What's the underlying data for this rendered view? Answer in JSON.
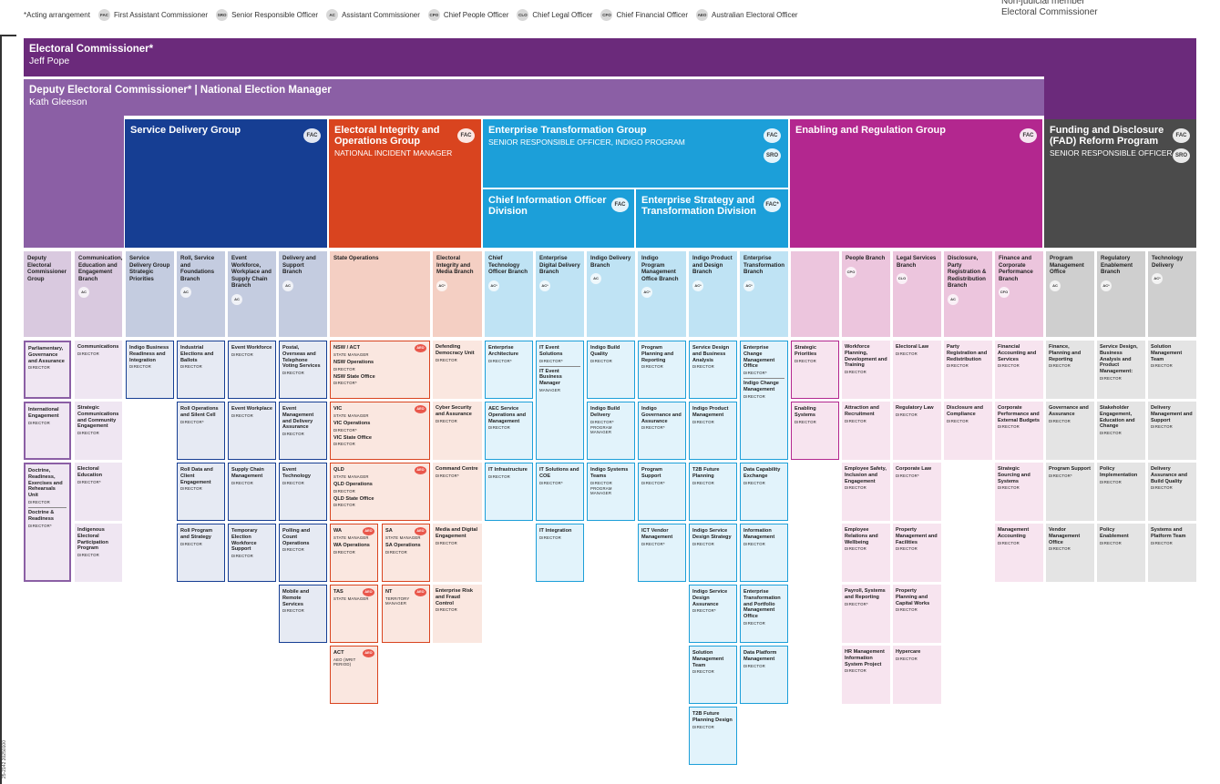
{
  "legend": {
    "note": "*Acting arrangement",
    "items": [
      {
        "code": "FAC",
        "label": "First Assistant Commissioner"
      },
      {
        "code": "SRO",
        "label": "Senior Responsible Officer"
      },
      {
        "code": "AC",
        "label": "Assistant Commissioner"
      },
      {
        "code": "CPO",
        "label": "Chief People Officer"
      },
      {
        "code": "CLO",
        "label": "Chief Legal Officer"
      },
      {
        "code": "CFO",
        "label": "Chief Financial Officer"
      },
      {
        "code": "AEO",
        "label": "Australian Electoral Officer"
      }
    ]
  },
  "non_judicial": {
    "line1": "Non-judicial member",
    "line2": "Electoral Commissioner"
  },
  "commissioner": {
    "title": "Electoral Commissioner*",
    "name": "Jeff Pope"
  },
  "deputy": {
    "title": "Deputy Electoral Commissioner* | National Election Manager",
    "name": "Kath Gleeson"
  },
  "groups": {
    "service": {
      "title": "Service Delivery Group",
      "badge": "FAC"
    },
    "integrity": {
      "title": "Electoral Integrity and Operations Group",
      "sub": "National Incident Manager",
      "badge": "FAC"
    },
    "transformation": {
      "title": "Enterprise Transformation Group",
      "sub": "Senior Responsible Officer, Indigo Program",
      "badge1": "FAC",
      "badge2": "SRO"
    },
    "cio": {
      "title": "Chief Information Officer Division",
      "badge": "FAC"
    },
    "strategy": {
      "title": "Enterprise Strategy and Transformation Division",
      "badge": "FAC*"
    },
    "enabling": {
      "title": "Enabling and Regulation Group",
      "badge": "FAC"
    },
    "funding": {
      "title": "Funding and Disclosure (FAD) Reform Program",
      "sub": "Senior Responsible Officer",
      "badge1": "FAC",
      "badge2": "SRO"
    }
  },
  "branches": [
    {
      "name": "Deputy Electoral Commissioner Group",
      "badge": ""
    },
    {
      "name": "Communication, Education and Engagement Branch",
      "badge": "AC"
    },
    {
      "name": "Service Delivery Group Strategic Priorities",
      "badge": ""
    },
    {
      "name": "Roll, Service and Foundations Branch",
      "badge": "AC"
    },
    {
      "name": "Event Workforce, Workplace and Supply Chain Branch",
      "badge": "AC"
    },
    {
      "name": "Delivery and Support Branch",
      "badge": "AC"
    },
    {
      "name": "State Operations",
      "badge": ""
    },
    {
      "name": "Electoral Integrity and Media Branch",
      "badge": "AC*"
    },
    {
      "name": "Chief Technology Officer Branch",
      "badge": "AC*"
    },
    {
      "name": "Enterprise Digital Delivery Branch",
      "badge": "AC*"
    },
    {
      "name": "Indigo Delivery Branch",
      "badge": "AC"
    },
    {
      "name": "Indigo Program Management Office Branch",
      "badge": "AC*"
    },
    {
      "name": "Indigo Product and Design Branch",
      "badge": "AC*"
    },
    {
      "name": "Enterprise Transformation Branch",
      "badge": "AC*"
    },
    {
      "name": "",
      "badge": ""
    },
    {
      "name": "People Branch",
      "badge": "CPO"
    },
    {
      "name": "Legal Services Branch",
      "badge": "CLO"
    },
    {
      "name": "Disclosure, Party Registration & Redistribution Branch",
      "badge": "AC"
    },
    {
      "name": "Finance and Corporate Performance Branch",
      "badge": "CFO"
    },
    {
      "name": "Program Management Office",
      "badge": "AC"
    },
    {
      "name": "Regulatory Enablement Branch",
      "badge": "AC*"
    },
    {
      "name": "Technology Delivery",
      "badge": "AC*"
    }
  ],
  "cells": {
    "c0_0": {
      "n": "Parliamentary, Governance and Assurance",
      "r": "DIRECTOR"
    },
    "c0_1": {
      "n": "International Engagement",
      "r": "DIRECTOR"
    },
    "c0_2": {
      "n": "Doctrine, Readiness, Exercises and Rehearsals Unit",
      "r": "DIRECTOR",
      "n2": "Doctrine & Readiness",
      "r2": "DIRECTOR*"
    },
    "c1_0": {
      "n": "Communications",
      "r": "DIRECTOR"
    },
    "c1_1": {
      "n": "Strategic Communications and Community Engagement",
      "r": "DIRECTOR"
    },
    "c1_2": {
      "n": "Electoral Education",
      "r": "DIRECTOR*"
    },
    "c1_3": {
      "n": "Indigenous Electoral Participation Program",
      "r": "DIRECTOR"
    },
    "c2_0": {
      "n": "Indigo Business Readiness and Integration",
      "r": "DIRECTOR"
    },
    "c3_0": {
      "n": "Industrial Elections and Ballots",
      "r": "DIRECTOR"
    },
    "c3_1": {
      "n": "Roll Operations and Silent Cell",
      "r": "DIRECTOR*"
    },
    "c3_2": {
      "n": "Roll Data and Client Engagement",
      "r": "DIRECTOR"
    },
    "c3_3": {
      "n": "Roll Program and Strategy",
      "r": "DIRECTOR"
    },
    "c4_0": {
      "n": "Event Workforce",
      "r": "DIRECTOR"
    },
    "c4_1": {
      "n": "Event Workplace",
      "r": "DIRECTOR"
    },
    "c4_2": {
      "n": "Supply Chain Management",
      "r": "DIRECTOR"
    },
    "c4_3": {
      "n": "Temporary Election Workforce Support",
      "r": "DIRECTOR"
    },
    "c5_0": {
      "n": "Postal, Overseas and Telephone Voting Services",
      "r": "DIRECTOR"
    },
    "c5_1": {
      "n": "Event Management and Delivery Assurance",
      "r": "DIRECTOR"
    },
    "c5_2": {
      "n": "Event Technology",
      "r": "DIRECTOR"
    },
    "c5_3": {
      "n": "Polling and Count Operations",
      "r": "DIRECTOR"
    },
    "c5_4": {
      "n": "Mobile and Remote Services",
      "r": "DIRECTOR"
    },
    "s_nsw": {
      "n": "NSW / ACT",
      "r": "STATE MANAGER",
      "a": "NSW Operations",
      "ar": "DIRECTOR",
      "b": "NSW State Office",
      "br": "DIRECTOR*",
      "badge": "AEO"
    },
    "s_vic": {
      "n": "VIC",
      "r": "STATE MANAGER",
      "a": "VIC Operations",
      "ar": "DIRECTOR*",
      "b": "VIC State Office",
      "br": "DIRECTOR",
      "badge": "AEO"
    },
    "s_qld": {
      "n": "QLD",
      "r": "STATE MANAGER",
      "a": "QLD Operations",
      "ar": "DIRECTOR",
      "b": "QLD State Office",
      "br": "DIRECTOR",
      "badge": "AEO"
    },
    "s_wa": {
      "n": "WA",
      "r": "STATE MANAGER",
      "a": "WA Operations",
      "ar": "DIRECTOR",
      "badge": "AEO"
    },
    "s_sa": {
      "n": "SA",
      "r": "STATE MANAGER",
      "a": "SA Operations",
      "ar": "DIRECTOR",
      "badge": "AEO"
    },
    "s_tas": {
      "n": "TAS",
      "r": "STATE MANAGER",
      "badge": "AEO"
    },
    "s_nt": {
      "n": "NT",
      "r": "TERRITORY MANAGER",
      "badge": "AEO"
    },
    "s_act": {
      "n": "ACT",
      "r": "AEO (WRIT PERIOD)",
      "badge": "AEO"
    },
    "c7_0": {
      "n": "Defending Democracy Unit",
      "r": "DIRECTOR"
    },
    "c7_1": {
      "n": "Cyber Security and Assurance",
      "r": "DIRECTOR"
    },
    "c7_2": {
      "n": "Command Centre",
      "r": "DIRECTOR*"
    },
    "c7_3": {
      "n": "Media and Digital Engagement",
      "r": "DIRECTOR"
    },
    "c7_4": {
      "n": "Enterprise Risk and Fraud Control",
      "r": "DIRECTOR"
    },
    "c8_0": {
      "n": "Enterprise Architecture",
      "r": "DIRECTOR*"
    },
    "c8_1": {
      "n": "AEC Service Operations and Management",
      "r": "DIRECTOR"
    },
    "c8_2": {
      "n": "IT Infrastructure",
      "r": "DIRECTOR"
    },
    "c9_0": {
      "n": "IT Event Solutions",
      "r": "DIRECTOR*",
      "n2": "IT Event Business Manager",
      "r2": "MANAGER"
    },
    "c9_2": {
      "n": "IT Solutions and COE",
      "r": "DIRECTOR*"
    },
    "c9_3": {
      "n": "IT Integration",
      "r": "DIRECTOR"
    },
    "c10_0": {
      "n": "Indigo Build Quality",
      "r": "DIRECTOR"
    },
    "c10_1": {
      "n": "Indigo Build Delivery",
      "r": "DIRECTOR*",
      "r2": "PROGRAM MANAGER"
    },
    "c10_2": {
      "n": "Indigo Systems Teams",
      "r": "DIRECTOR",
      "r2": "PROGRAM MANAGER"
    },
    "c11_0": {
      "n": "Program Planning and Reporting",
      "r": "DIRECTOR"
    },
    "c11_1": {
      "n": "Indigo Governance and Assurance",
      "r": "DIRECTOR*"
    },
    "c11_2": {
      "n": "Program Support",
      "r": "DIRECTOR*"
    },
    "c11_3": {
      "n": "ICT Vendor Management",
      "r": "DIRECTOR*"
    },
    "c12_0": {
      "n": "Service Design and Business Analysis",
      "r": "DIRECTOR"
    },
    "c12_1": {
      "n": "Indigo Product Management",
      "r": "DIRECTOR"
    },
    "c12_2": {
      "n": "T2B Future Planning",
      "r": "DIRECTOR"
    },
    "c12_3": {
      "n": "Indigo Service Design Strategy",
      "r": "DIRECTOR"
    },
    "c12_4": {
      "n": "Indigo Service Design Assurance",
      "r": "DIRECTOR*"
    },
    "c12_5": {
      "n": "Solution Management Team",
      "r": "DIRECTOR"
    },
    "c12_6": {
      "n": "T2B Future Planning Design",
      "r": "DIRECTOR"
    },
    "c13_0": {
      "n": "Enterprise Change Management Office",
      "r": "DIRECTOR*",
      "n2": "Indigo Change Management",
      "r2": "DIRECTOR"
    },
    "c13_2": {
      "n": "Data Capability Exchange",
      "r": "DIRECTOR"
    },
    "c13_3": {
      "n": "Information Management",
      "r": "DIRECTOR"
    },
    "c13_4": {
      "n": "Enterprise Transformation and Portfolio Management Office",
      "r": "DIRECTOR"
    },
    "c13_5": {
      "n": "Data Platform Management",
      "r": "DIRECTOR"
    },
    "c14_0": {
      "n": "Strategic Priorities",
      "r": "DIRECTOR"
    },
    "c14_1": {
      "n": "Enabling Systems",
      "r": "DIRECTOR"
    },
    "c15_0": {
      "n": "Workforce Planning, Development and Training",
      "r": "DIRECTOR"
    },
    "c15_1": {
      "n": "Attraction and Recruitment",
      "r": "DIRECTOR"
    },
    "c15_2": {
      "n": "Employee Safety, Inclusion and Engagement",
      "r": "DIRECTOR"
    },
    "c15_3": {
      "n": "Employee Relations and Wellbeing",
      "r": "DIRECTOR"
    },
    "c15_4": {
      "n": "Payroll, Systems and Reporting",
      "r": "DIRECTOR*"
    },
    "c15_5": {
      "n": "HR Management Information System Project",
      "r": "DIRECTOR"
    },
    "c16_0": {
      "n": "Electoral Law",
      "r": "DIRECTOR"
    },
    "c16_1": {
      "n": "Regulatory Law",
      "r": "DIRECTOR"
    },
    "c16_2": {
      "n": "Corporate Law",
      "r": "DIRECTOR*"
    },
    "c16_3": {
      "n": "Property Management and Facilities",
      "r": "DIRECTOR"
    },
    "c16_4": {
      "n": "Property Planning and Capital Works",
      "r": "DIRECTOR"
    },
    "c16_5": {
      "n": "Hypercare",
      "r": "DIRECTOR"
    },
    "c17_0": {
      "n": "Party Registration and Redistribution",
      "r": "DIRECTOR"
    },
    "c17_1": {
      "n": "Disclosure and Compliance",
      "r": "DIRECTOR"
    },
    "c18_0": {
      "n": "Financial Accounting and Services",
      "r": "DIRECTOR"
    },
    "c18_1": {
      "n": "Corporate Performance and External Budgets",
      "r": "DIRECTOR"
    },
    "c18_2": {
      "n": "Strategic Sourcing and Systems",
      "r": "DIRECTOR"
    },
    "c18_3": {
      "n": "Management Accounting",
      "r": "DIRECTOR"
    },
    "c19_0": {
      "n": "Finance, Planning and Reporting",
      "r": "DIRECTOR"
    },
    "c19_1": {
      "n": "Governance and Assurance",
      "r": "DIRECTOR"
    },
    "c19_2": {
      "n": "Program Support",
      "r": "DIRECTOR*"
    },
    "c19_3": {
      "n": "Vendor Management Office",
      "r": "DIRECTOR"
    },
    "c20_0": {
      "n": "Service Design, Business Analysis and Product Management:",
      "r": "DIRECTOR"
    },
    "c20_1": {
      "n": "Stakeholder Engagement, Education and Change",
      "r": "DIRECTOR"
    },
    "c20_2": {
      "n": "Policy Implementation",
      "r": "DIRECTOR"
    },
    "c20_3": {
      "n": "Policy Enablement",
      "r": "DIRECTOR"
    },
    "c21_0": {
      "n": "Solution Management Team",
      "r": "DIRECTOR"
    },
    "c21_1": {
      "n": "Delivery Management and Support",
      "r": "DIRECTOR"
    },
    "c21_2": {
      "n": "Delivery Assurance and Build Quality",
      "r": "DIRECTOR"
    },
    "c21_3": {
      "n": "Systems and Platform Team",
      "r": "DIRECTOR"
    }
  },
  "footer_code": "25-2142 20250100",
  "colors": {
    "purple": "#6b2a7b",
    "lavender": "#8b5fa5",
    "navy": "#163e93",
    "orange": "#d9441f",
    "cyan": "#1c9fd9",
    "magenta": "#b3278f",
    "grey": "#4b4b4b"
  }
}
